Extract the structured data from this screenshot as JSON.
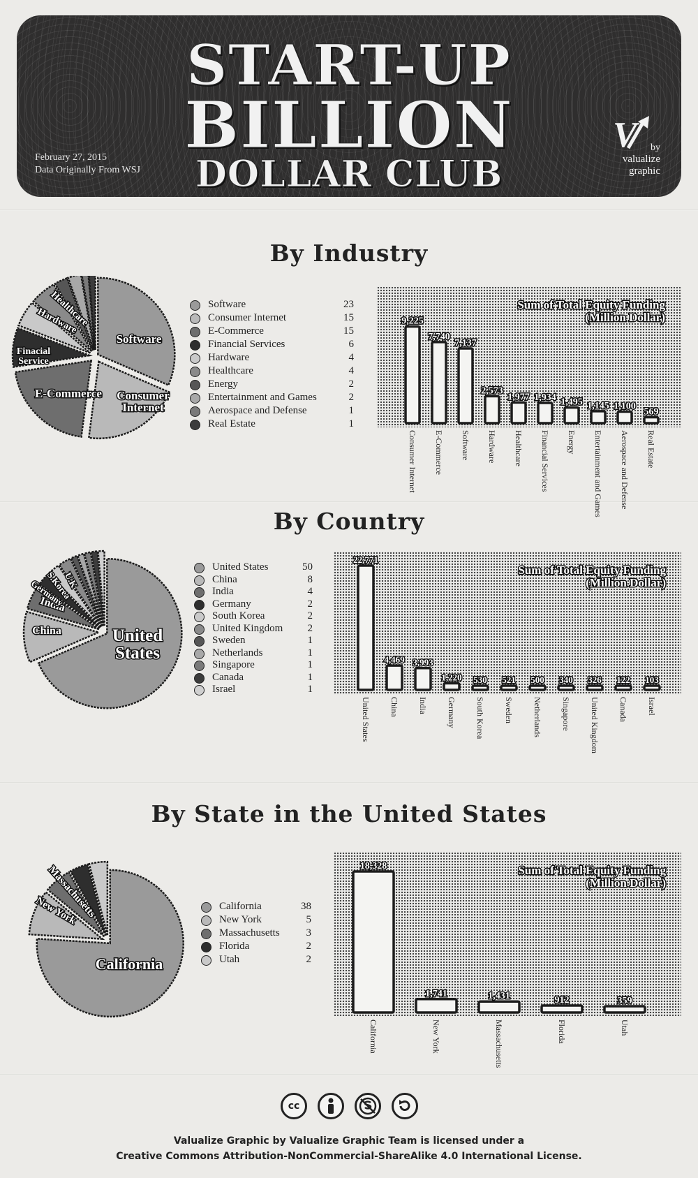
{
  "header": {
    "title_line1": "START-UP",
    "title_line2": "BILLION",
    "title_line3": "DOLLAR CLUB",
    "date": "February 27, 2015",
    "source": "Data Originally From WSJ",
    "brand_mark": "V",
    "brand_by": "by",
    "brand_line1": "valualize",
    "brand_line2": "graphic"
  },
  "sections": {
    "industry": "By Industry",
    "country": "By Country",
    "state": "By State in the United States"
  },
  "bar_title_line1": "Sum of Total Equity Funding",
  "bar_title_line2": "(Million Dollar)",
  "colors": {
    "paper": "#ecebe8",
    "ink": "#222222",
    "banner": "#2f2e2e",
    "bar_fill": "#f4f4f2"
  },
  "chart_data": [
    {
      "id": "industry-pie",
      "type": "pie",
      "labels": [
        "Software",
        "Consumer Internet",
        "E-Commerce",
        "Financial Services",
        "Hardware",
        "Healthcare",
        "Energy",
        "Entertainment and Games",
        "Aerospace and Defense",
        "Real Estate"
      ],
      "values": [
        23,
        15,
        15,
        6,
        4,
        4,
        2,
        2,
        1,
        1
      ],
      "slice_labels": [
        "Software",
        "Consumer\nInternet",
        "E-Commerce",
        "Finacial\nService",
        "Hardware",
        "Healthcare",
        "",
        "",
        "",
        ""
      ]
    },
    {
      "id": "industry-bar",
      "type": "bar",
      "title": "Sum of Total Equity Funding (Million Dollar)",
      "categories": [
        "Consumer Internet",
        "E-Commerce",
        "Software",
        "Hardware",
        "Healthcare",
        "Financial Services",
        "Energy",
        "Entertainment and Games",
        "Aerospace and Defense",
        "Real Estate"
      ],
      "values": [
        9225,
        7740,
        7137,
        2573,
        1977,
        1934,
        1495,
        1145,
        1100,
        569
      ],
      "value_labels": [
        "9,225",
        "7,740",
        "7,137",
        "2,573",
        "1,977",
        "1,934",
        "1,495",
        "1,145",
        "1,100",
        "569"
      ],
      "ylim": [
        0,
        10000
      ]
    },
    {
      "id": "country-pie",
      "type": "pie",
      "labels": [
        "United States",
        "China",
        "India",
        "Germany",
        "South Korea",
        "United Kingdom",
        "Sweden",
        "Netherlands",
        "Singapore",
        "Canada",
        "Israel"
      ],
      "values": [
        50,
        8,
        4,
        2,
        2,
        2,
        1,
        1,
        1,
        1,
        1
      ],
      "slice_labels": [
        "United\nStates",
        "China",
        "India",
        "Germany",
        "S.Korea",
        "U.K",
        "",
        "",
        "",
        "",
        ""
      ]
    },
    {
      "id": "country-bar",
      "type": "bar",
      "title": "Sum of Total Equity Funding (Million Dollar)",
      "categories": [
        "United States",
        "China",
        "India",
        "Germany",
        "South Korea",
        "Sweden",
        "Netherlands",
        "Singapore",
        "United Kingdom",
        "Canada",
        "Israel"
      ],
      "values": [
        22771,
        4469,
        3993,
        1220,
        530,
        521,
        500,
        340,
        326,
        122,
        103
      ],
      "value_labels": [
        "22,771",
        "4,469",
        "3,993",
        "1,220",
        "530",
        "521",
        "500",
        "340",
        "326",
        "122",
        "103"
      ],
      "ylim": [
        0,
        22771
      ]
    },
    {
      "id": "state-pie",
      "type": "pie",
      "labels": [
        "California",
        "New York",
        "Massachusetts",
        "Florida",
        "Utah"
      ],
      "values": [
        38,
        5,
        3,
        2,
        2
      ],
      "slice_labels": [
        "California",
        "New York",
        "Massachusetts",
        "",
        ""
      ]
    },
    {
      "id": "state-bar",
      "type": "bar",
      "title": "Sum of Total Equity Funding (Million Dollar)",
      "categories": [
        "California",
        "New York",
        "Massachusetts",
        "Florida",
        "Utah"
      ],
      "values": [
        18328,
        1741,
        1431,
        912,
        359
      ],
      "value_labels": [
        "18,328",
        "1,741",
        "1,431",
        "912",
        "359"
      ],
      "ylim": [
        0,
        18328
      ]
    }
  ],
  "license": {
    "icons": [
      "cc-icon",
      "attribution-icon",
      "noncommercial-icon",
      "sharealike-icon"
    ],
    "cc_glyph": "cc",
    "line1": "Valualize Graphic by Valualize Graphic Team is licensed under a",
    "line2": "Creative Commons Attribution-NonCommercial-ShareAlike 4.0 International License."
  }
}
